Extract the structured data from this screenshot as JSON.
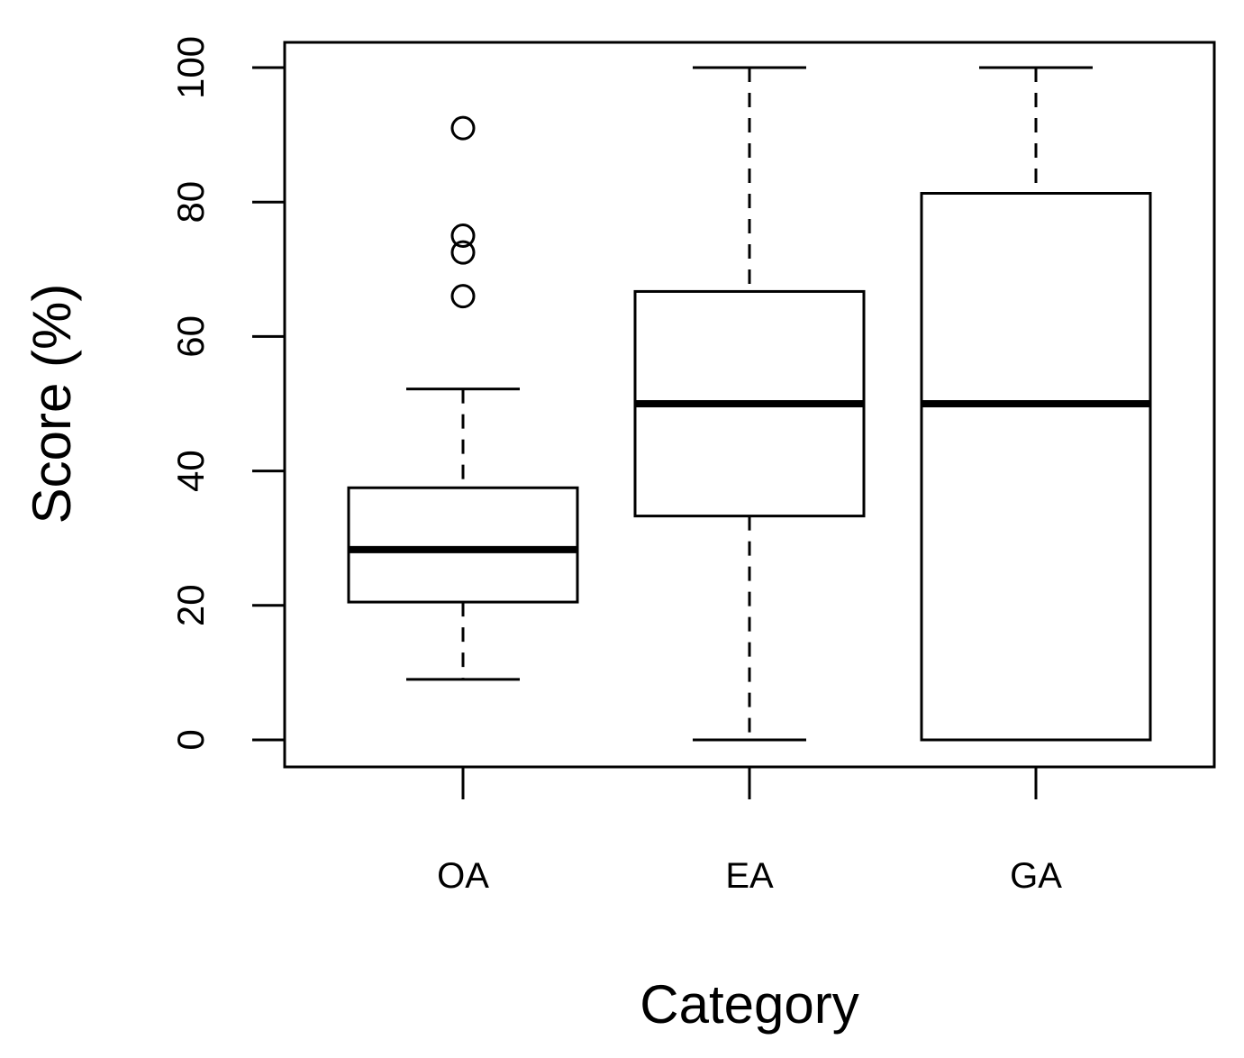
{
  "chart_data": {
    "type": "boxplot",
    "xlabel": "Category",
    "ylabel": "Score (%)",
    "ylim": [
      -4,
      104
    ],
    "yticks": [
      0,
      20,
      40,
      60,
      80,
      100
    ],
    "ytick_labels": [
      "0",
      "20",
      "40",
      "60",
      "80",
      "100"
    ],
    "categories": [
      "OA",
      "EA",
      "GA"
    ],
    "boxes": [
      {
        "category": "OA",
        "whisker_low": 9,
        "q1": 20.5,
        "median": 28.3,
        "q3": 37.5,
        "whisker_high": 52.2,
        "outliers": [
          66,
          72.5,
          75,
          91
        ]
      },
      {
        "category": "EA",
        "whisker_low": 0,
        "q1": 33.3,
        "median": 50,
        "q3": 66.7,
        "whisker_high": 100,
        "outliers": []
      },
      {
        "category": "GA",
        "whisker_low": 0,
        "q1": 0,
        "median": 50,
        "q3": 81.3,
        "whisker_high": 100,
        "outliers": []
      }
    ],
    "grid": false,
    "legend": "none"
  }
}
